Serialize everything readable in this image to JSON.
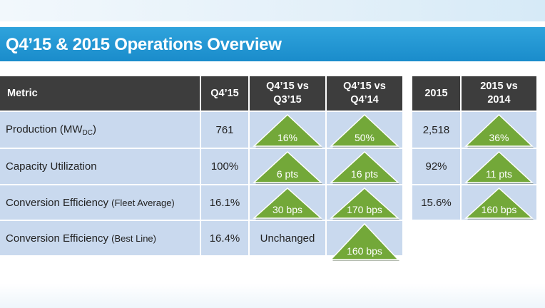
{
  "slide": {
    "title": "Q4’15 & 2015 Operations Overview"
  },
  "table": {
    "headers": {
      "metric": "Metric",
      "q4_15": "Q4’15",
      "q4_vs_q3_line1": "Q4’15 vs",
      "q4_vs_q3_line2": "Q3’15",
      "q4_vs_q4_line1": "Q4’15 vs",
      "q4_vs_q4_line2": "Q4’14",
      "y2015": "2015",
      "y2015_vs_line1": "2015 vs",
      "y2015_vs_line2": "2014"
    },
    "rows": [
      {
        "metric_main": "Production (MW",
        "metric_sub": "DC",
        "metric_tail": ")",
        "q4_15": "761",
        "vs_q3": "16%",
        "vs_q4": "50%",
        "y2015": "2,518",
        "y2015_vs": "36%"
      },
      {
        "metric_main": "Capacity Utilization",
        "q4_15": "100%",
        "vs_q3": "6 pts",
        "vs_q4": "16 pts",
        "y2015": "92%",
        "y2015_vs": "11 pts"
      },
      {
        "metric_main": "Conversion Efficiency ",
        "metric_small": "(Fleet Average)",
        "q4_15": "16.1%",
        "vs_q3": "30 bps",
        "vs_q4": "170 bps",
        "y2015": "15.6%",
        "y2015_vs": "160 bps"
      },
      {
        "metric_main": "Conversion Efficiency ",
        "metric_small": "(Best Line)",
        "q4_15": "16.4%",
        "vs_q3_text": "Unchanged",
        "vs_q4": "160 bps"
      }
    ]
  },
  "colors": {
    "header_bg": "#3d3d3d",
    "cell_bg": "#c9d9ee",
    "title_bar": "#1a8ccb",
    "triangle_green": "#73a839"
  },
  "icons": {
    "increase": "green-up-triangle-icon"
  }
}
